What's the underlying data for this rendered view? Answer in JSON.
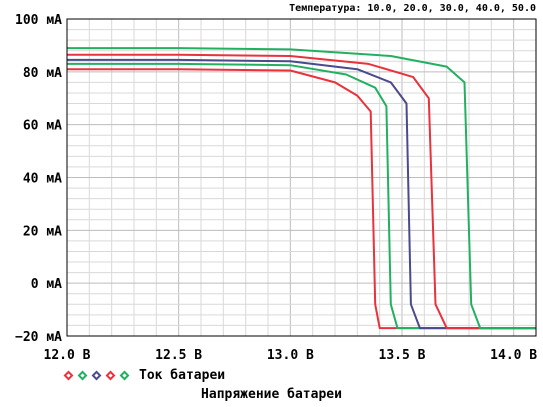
{
  "chart_data": {
    "type": "line",
    "subtitle": "Температура: 10.0, 20.0, 30.0, 40.0, 50.0",
    "xlabel": "Напряжение батареи",
    "legend_label": "Ток батареи",
    "x_ticks": [
      "12.0 В",
      "12.5 В",
      "13.0 В",
      "13.5 В",
      "14.0 В"
    ],
    "y_ticks": [
      "100 мА",
      "80 мА",
      "60 мА",
      "40 мА",
      "20 мА",
      "0 мА",
      "−20 мА"
    ],
    "xlim": [
      12.0,
      14.1
    ],
    "ylim": [
      -20,
      100
    ],
    "grid": true,
    "series": [
      {
        "color": "#e8323c",
        "x": [
          12.0,
          12.5,
          13.0,
          13.2,
          13.3,
          13.36,
          13.38,
          13.4,
          14.1
        ],
        "y": [
          81,
          81,
          80.5,
          76,
          71,
          65,
          -8,
          -17,
          -17
        ]
      },
      {
        "color": "#22b060",
        "x": [
          12.0,
          12.5,
          13.0,
          13.25,
          13.38,
          13.43,
          13.45,
          13.48,
          14.1
        ],
        "y": [
          83,
          83,
          82.5,
          79,
          74,
          67,
          -8,
          -17,
          -17
        ]
      },
      {
        "color": "#4a4a8c",
        "x": [
          12.0,
          12.5,
          13.0,
          13.3,
          13.45,
          13.52,
          13.54,
          13.58,
          14.1
        ],
        "y": [
          84.5,
          84.5,
          84,
          81,
          76,
          68,
          -8,
          -17,
          -17
        ]
      },
      {
        "color": "#e8323c",
        "x": [
          12.0,
          12.5,
          13.0,
          13.35,
          13.55,
          13.62,
          13.65,
          13.7,
          14.1
        ],
        "y": [
          86.5,
          86.5,
          86,
          83,
          78,
          70,
          -8,
          -17,
          -17
        ]
      },
      {
        "color": "#22b060",
        "x": [
          12.0,
          12.5,
          13.0,
          13.45,
          13.7,
          13.78,
          13.81,
          13.85,
          14.1
        ],
        "y": [
          89,
          89,
          88.5,
          86,
          82,
          76,
          -8,
          -17,
          -17
        ]
      }
    ]
  }
}
